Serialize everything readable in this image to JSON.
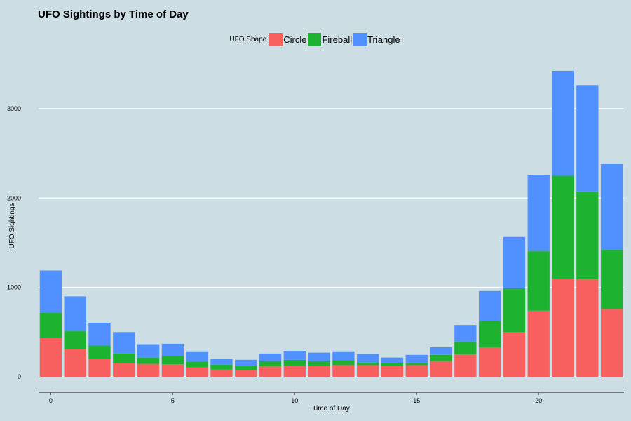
{
  "chart_data": {
    "type": "bar",
    "stacked": true,
    "title": "UFO Sightings by Time of Day",
    "xlabel": "Time of Day",
    "ylabel": "UFO Sightings",
    "legend_title": "UFO Shape",
    "legend_position": "top",
    "grid": true,
    "x": [
      0,
      1,
      2,
      3,
      4,
      5,
      6,
      7,
      8,
      9,
      10,
      11,
      12,
      13,
      14,
      15,
      16,
      17,
      18,
      19,
      20,
      21,
      22,
      23
    ],
    "xlim": [
      -0.5,
      23.5
    ],
    "xticks": [
      0,
      5,
      10,
      15,
      20
    ],
    "ylim": [
      0,
      3550
    ],
    "yticks": [
      0,
      1000,
      2000,
      3000
    ],
    "series": [
      {
        "name": "Circle",
        "color": "#f8605f",
        "values": [
          440,
          310,
          200,
          150,
          145,
          140,
          105,
          80,
          75,
          115,
          125,
          120,
          130,
          130,
          125,
          130,
          175,
          250,
          330,
          500,
          740,
          1100,
          1090,
          760
        ]
      },
      {
        "name": "Fireball",
        "color": "#1db22f",
        "values": [
          280,
          200,
          150,
          110,
          70,
          95,
          65,
          55,
          50,
          60,
          65,
          55,
          55,
          30,
          25,
          20,
          70,
          145,
          295,
          490,
          665,
          1150,
          985,
          660
        ]
      },
      {
        "name": "Triangle",
        "color": "#5090ff",
        "values": [
          470,
          390,
          255,
          240,
          150,
          135,
          115,
          65,
          65,
          85,
          100,
          95,
          100,
          95,
          65,
          95,
          85,
          185,
          335,
          575,
          850,
          1175,
          1190,
          960
        ]
      }
    ]
  }
}
